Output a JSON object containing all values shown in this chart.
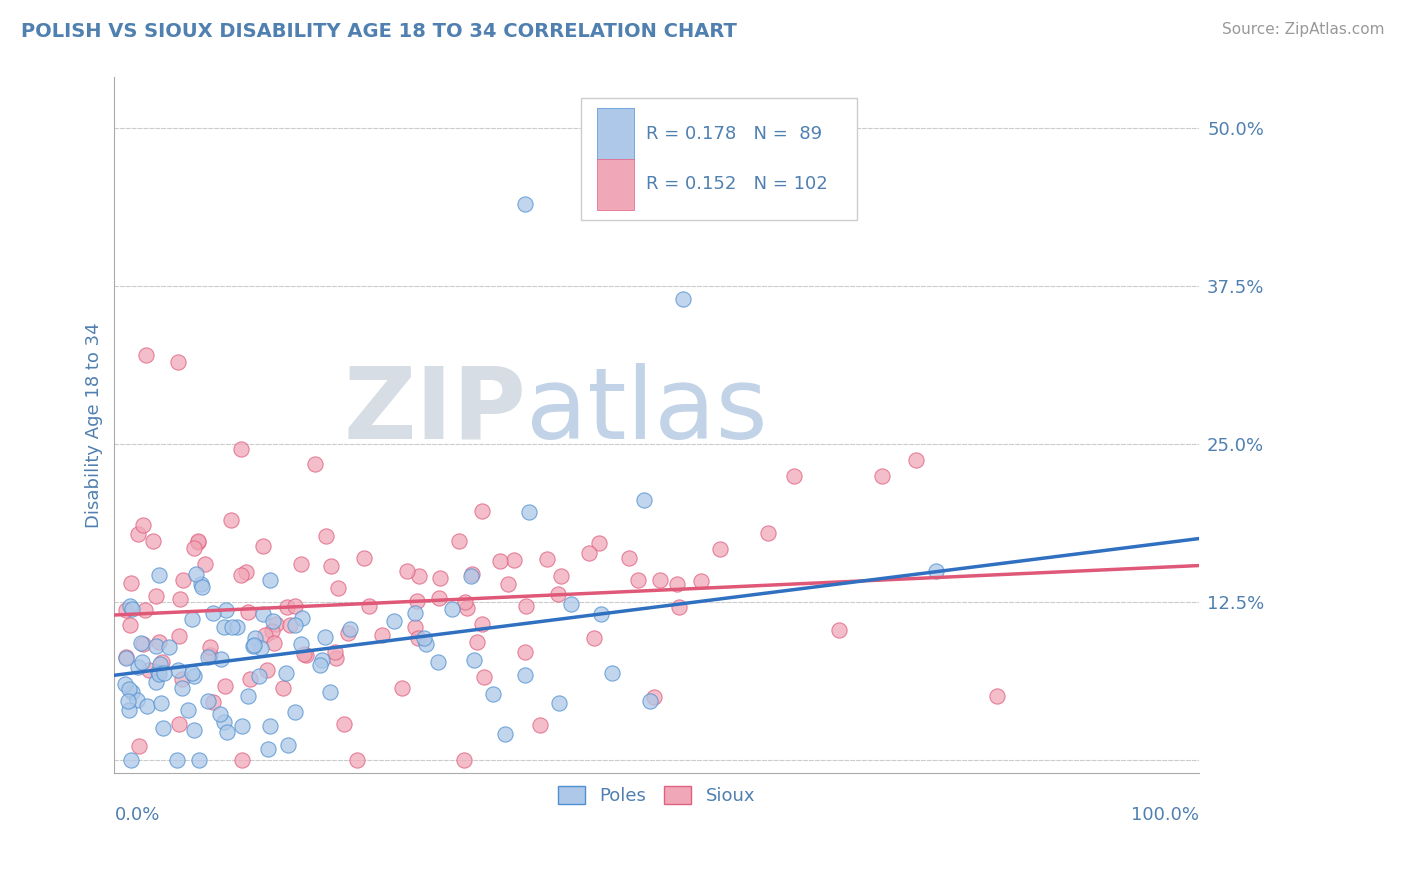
{
  "title": "POLISH VS SIOUX DISABILITY AGE 18 TO 34 CORRELATION CHART",
  "source": "Source: ZipAtlas.com",
  "ylabel": "Disability Age 18 to 34",
  "poles_R": 0.178,
  "poles_N": 89,
  "sioux_R": 0.152,
  "sioux_N": 102,
  "poles_color": "#adc8e8",
  "sioux_color": "#f0a8b8",
  "poles_edge_color": "#5090d0",
  "sioux_edge_color": "#e06080",
  "poles_line_color": "#3070c0",
  "sioux_line_color": "#e05878",
  "title_color": "#5080b0",
  "axis_label_color": "#5080b0",
  "tick_color": "#5080b0",
  "legend_text_color": "#5080b0",
  "source_color": "#999999",
  "background_color": "#ffffff",
  "grid_color": "#cccccc",
  "xlim": [
    0.0,
    1.0
  ],
  "ylim": [
    0.0,
    0.52
  ],
  "yticks": [
    0.0,
    0.125,
    0.25,
    0.375,
    0.5
  ],
  "ytick_labels": [
    "",
    "12.5%",
    "25.0%",
    "37.5%",
    "50.0%"
  ],
  "poles_intercept": 0.068,
  "poles_slope": 0.105,
  "sioux_intercept": 0.115,
  "sioux_slope": 0.038
}
